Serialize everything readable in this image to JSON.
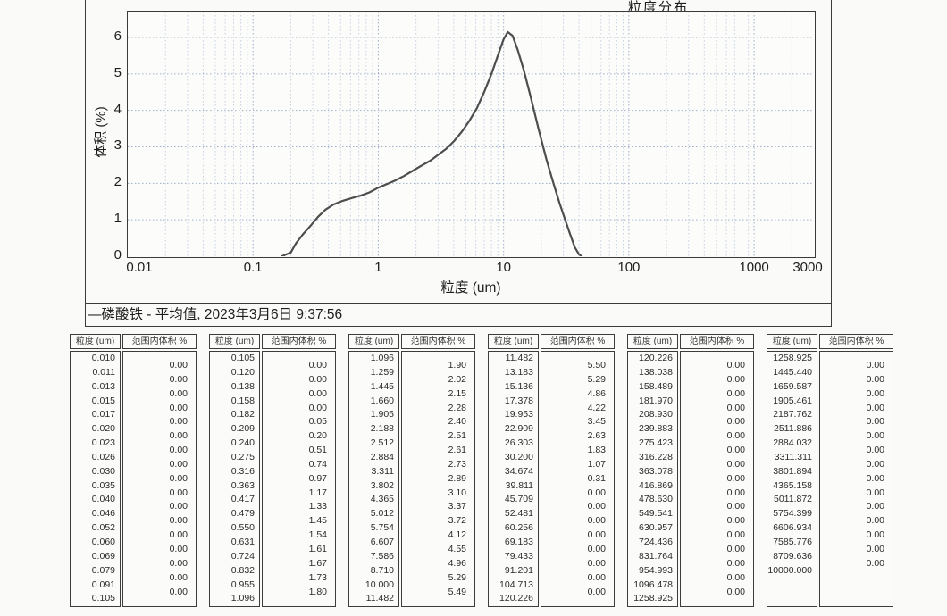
{
  "report": {
    "title": "粒度分布",
    "ylabel": "体积 (%)",
    "xlabel": "粒度 (um)",
    "caption": "—磷酸铁 - 平均值, 2023年3月6日 9:37:56"
  },
  "colors": {
    "grid_major": "#9fb0c8",
    "grid_minor": "#c6d0e0",
    "curve": "#4d4d4d",
    "frame": "#3a3a3a",
    "paper": "#fafaf8"
  },
  "chart_data": {
    "type": "line",
    "title": "粒度分布",
    "xlabel": "粒度 (um)",
    "ylabel": "体积 (%)",
    "x_scale": "log",
    "xlim": [
      0.01,
      3000
    ],
    "ylim": [
      0,
      6.71
    ],
    "x_ticks": [
      "0.01",
      "0.1",
      "1",
      "10",
      "100",
      "1000",
      "3000"
    ],
    "y_ticks": [
      "0",
      "1",
      "2",
      "3",
      "4",
      "5",
      "6"
    ],
    "grid": true,
    "legend_position": "bottom-caption",
    "series": [
      {
        "name": "磷酸铁 - 平均值, 2023年3月6日 9:37:56",
        "points": [
          [
            0.17,
            0
          ],
          [
            0.2,
            0.1
          ],
          [
            0.22,
            0.35
          ],
          [
            0.25,
            0.6
          ],
          [
            0.29,
            0.85
          ],
          [
            0.33,
            1.08
          ],
          [
            0.38,
            1.28
          ],
          [
            0.44,
            1.42
          ],
          [
            0.52,
            1.52
          ],
          [
            0.62,
            1.6
          ],
          [
            0.72,
            1.66
          ],
          [
            0.85,
            1.75
          ],
          [
            1.0,
            1.88
          ],
          [
            1.15,
            1.97
          ],
          [
            1.35,
            2.07
          ],
          [
            1.6,
            2.2
          ],
          [
            1.9,
            2.35
          ],
          [
            2.2,
            2.48
          ],
          [
            2.6,
            2.62
          ],
          [
            3.0,
            2.78
          ],
          [
            3.5,
            2.95
          ],
          [
            4.0,
            3.15
          ],
          [
            4.6,
            3.4
          ],
          [
            5.3,
            3.7
          ],
          [
            6.1,
            4.05
          ],
          [
            7.0,
            4.5
          ],
          [
            8.0,
            5.0
          ],
          [
            9.0,
            5.5
          ],
          [
            10.0,
            5.95
          ],
          [
            10.8,
            6.15
          ],
          [
            11.8,
            6.05
          ],
          [
            13.0,
            5.65
          ],
          [
            14.5,
            5.1
          ],
          [
            16.5,
            4.35
          ],
          [
            19.0,
            3.5
          ],
          [
            22.0,
            2.65
          ],
          [
            25.0,
            2.0
          ],
          [
            28.0,
            1.45
          ],
          [
            31.0,
            1.0
          ],
          [
            34.0,
            0.6
          ],
          [
            37.0,
            0.25
          ],
          [
            40.0,
            0.05
          ],
          [
            42.0,
            0
          ]
        ]
      }
    ]
  },
  "table_header": {
    "size": "粒度 (um)",
    "volume": "范围内体积 %"
  },
  "tables": [
    {
      "sizes": [
        "0.010",
        "0.011",
        "0.013",
        "0.015",
        "0.017",
        "0.020",
        "0.023",
        "0.026",
        "0.030",
        "0.035",
        "0.040",
        "0.046",
        "0.052",
        "0.060",
        "0.069",
        "0.079",
        "0.091",
        "0.105"
      ],
      "values": [
        "0.00",
        "0.00",
        "0.00",
        "0.00",
        "0.00",
        "0.00",
        "0.00",
        "0.00",
        "0.00",
        "0.00",
        "0.00",
        "0.00",
        "0.00",
        "0.00",
        "0.00",
        "0.00",
        "0.00"
      ]
    },
    {
      "sizes": [
        "0.105",
        "0.120",
        "0.138",
        "0.158",
        "0.182",
        "0.209",
        "0.240",
        "0.275",
        "0.316",
        "0.363",
        "0.417",
        "0.479",
        "0.550",
        "0.631",
        "0.724",
        "0.832",
        "0.955",
        "1.096"
      ],
      "values": [
        "0.00",
        "0.00",
        "0.00",
        "0.00",
        "0.05",
        "0.20",
        "0.51",
        "0.74",
        "0.97",
        "1.17",
        "1.33",
        "1.45",
        "1.54",
        "1.61",
        "1.67",
        "1.73",
        "1.80"
      ]
    },
    {
      "sizes": [
        "1.096",
        "1.259",
        "1.445",
        "1.660",
        "1.905",
        "2.188",
        "2.512",
        "2.884",
        "3.311",
        "3.802",
        "4.365",
        "5.012",
        "5.754",
        "6.607",
        "7.586",
        "8.710",
        "10.000",
        "11.482"
      ],
      "values": [
        "1.90",
        "2.02",
        "2.15",
        "2.28",
        "2.40",
        "2.51",
        "2.61",
        "2.73",
        "2.89",
        "3.10",
        "3.37",
        "3.72",
        "4.12",
        "4.55",
        "4.96",
        "5.29",
        "5.49"
      ]
    },
    {
      "sizes": [
        "11.482",
        "13.183",
        "15.136",
        "17.378",
        "19.953",
        "22.909",
        "26.303",
        "30.200",
        "34.674",
        "39.811",
        "45.709",
        "52.481",
        "60.256",
        "69.183",
        "79.433",
        "91.201",
        "104.713",
        "120.226"
      ],
      "values": [
        "5.50",
        "5.29",
        "4.86",
        "4.22",
        "3.45",
        "2.63",
        "1.83",
        "1.07",
        "0.31",
        "0.00",
        "0.00",
        "0.00",
        "0.00",
        "0.00",
        "0.00",
        "0.00",
        "0.00"
      ]
    },
    {
      "sizes": [
        "120.226",
        "138.038",
        "158.489",
        "181.970",
        "208.930",
        "239.883",
        "275.423",
        "316.228",
        "363.078",
        "416.869",
        "478.630",
        "549.541",
        "630.957",
        "724.436",
        "831.764",
        "954.993",
        "1096.478",
        "1258.925"
      ],
      "values": [
        "0.00",
        "0.00",
        "0.00",
        "0.00",
        "0.00",
        "0.00",
        "0.00",
        "0.00",
        "0.00",
        "0.00",
        "0.00",
        "0.00",
        "0.00",
        "0.00",
        "0.00",
        "0.00",
        "0.00"
      ]
    },
    {
      "sizes": [
        "1258.925",
        "1445.440",
        "1659.587",
        "1905.461",
        "2187.762",
        "2511.886",
        "2884.032",
        "3311.311",
        "3801.894",
        "4365.158",
        "5011.872",
        "5754.399",
        "6606.934",
        "7585.776",
        "8709.636",
        "10000.000"
      ],
      "values": [
        "0.00",
        "0.00",
        "0.00",
        "0.00",
        "0.00",
        "0.00",
        "0.00",
        "0.00",
        "0.00",
        "0.00",
        "0.00",
        "0.00",
        "0.00",
        "0.00",
        "0.00"
      ]
    }
  ]
}
